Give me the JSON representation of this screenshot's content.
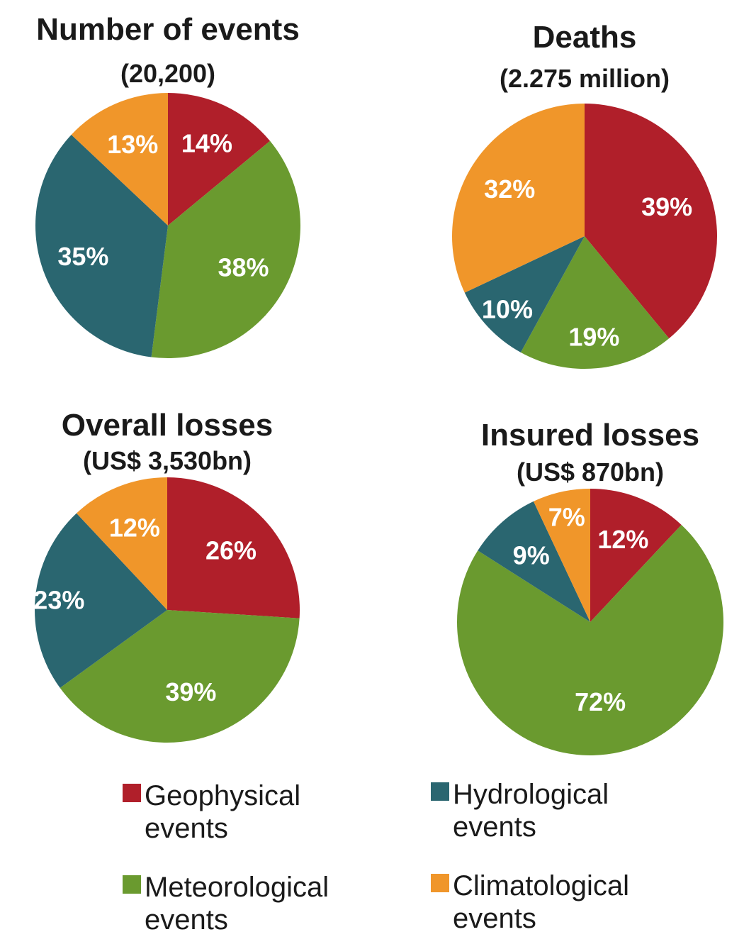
{
  "chart_data": [
    {
      "type": "pie",
      "title": "Number of events",
      "subtitle": "(20,200)",
      "slices": [
        {
          "category": "Geophysical events",
          "value": 14,
          "label": "14%"
        },
        {
          "category": "Meteorological events",
          "value": 38,
          "label": "38%"
        },
        {
          "category": "Hydrological events",
          "value": 35,
          "label": "35%"
        },
        {
          "category": "Climatological events",
          "value": 13,
          "label": "13%"
        }
      ]
    },
    {
      "type": "pie",
      "title": "Deaths",
      "subtitle": "(2.275 million)",
      "slices": [
        {
          "category": "Geophysical events",
          "value": 39,
          "label": "39%"
        },
        {
          "category": "Meteorological events",
          "value": 19,
          "label": "19%"
        },
        {
          "category": "Hydrological events",
          "value": 10,
          "label": "10%"
        },
        {
          "category": "Climatological events",
          "value": 32,
          "label": "32%"
        }
      ]
    },
    {
      "type": "pie",
      "title": "Overall losses",
      "subtitle": "(US$ 3,530bn)",
      "slices": [
        {
          "category": "Geophysical events",
          "value": 26,
          "label": "26%"
        },
        {
          "category": "Meteorological events",
          "value": 39,
          "label": "39%"
        },
        {
          "category": "Hydrological events",
          "value": 23,
          "label": "23%"
        },
        {
          "category": "Climatological events",
          "value": 12,
          "label": "12%"
        }
      ]
    },
    {
      "type": "pie",
      "title": "Insured losses",
      "subtitle": "(US$ 870bn)",
      "slices": [
        {
          "category": "Geophysical events",
          "value": 12,
          "label": "12%"
        },
        {
          "category": "Meteorological events",
          "value": 72,
          "label": "72%"
        },
        {
          "category": "Hydrological events",
          "value": 9,
          "label": "9%"
        },
        {
          "category": "Climatological events",
          "value": 7,
          "label": "7%"
        }
      ]
    }
  ],
  "legend": {
    "placement": "bottom",
    "items": [
      {
        "label_line1": "Geophysical",
        "label_line2": "events",
        "color": "#b01f2a"
      },
      {
        "label_line1": "Hydrological",
        "label_line2": "events",
        "color": "#2a6670"
      },
      {
        "label_line1": "Meteorological",
        "label_line2": "events",
        "color": "#6a9a2f"
      },
      {
        "label_line1": "Climatological",
        "label_line2": "events",
        "color": "#f0962a"
      }
    ]
  },
  "colors": {
    "Geophysical events": "#b01f2a",
    "Meteorological events": "#6a9a2f",
    "Hydrological events": "#2a6670",
    "Climatological events": "#f0962a"
  }
}
